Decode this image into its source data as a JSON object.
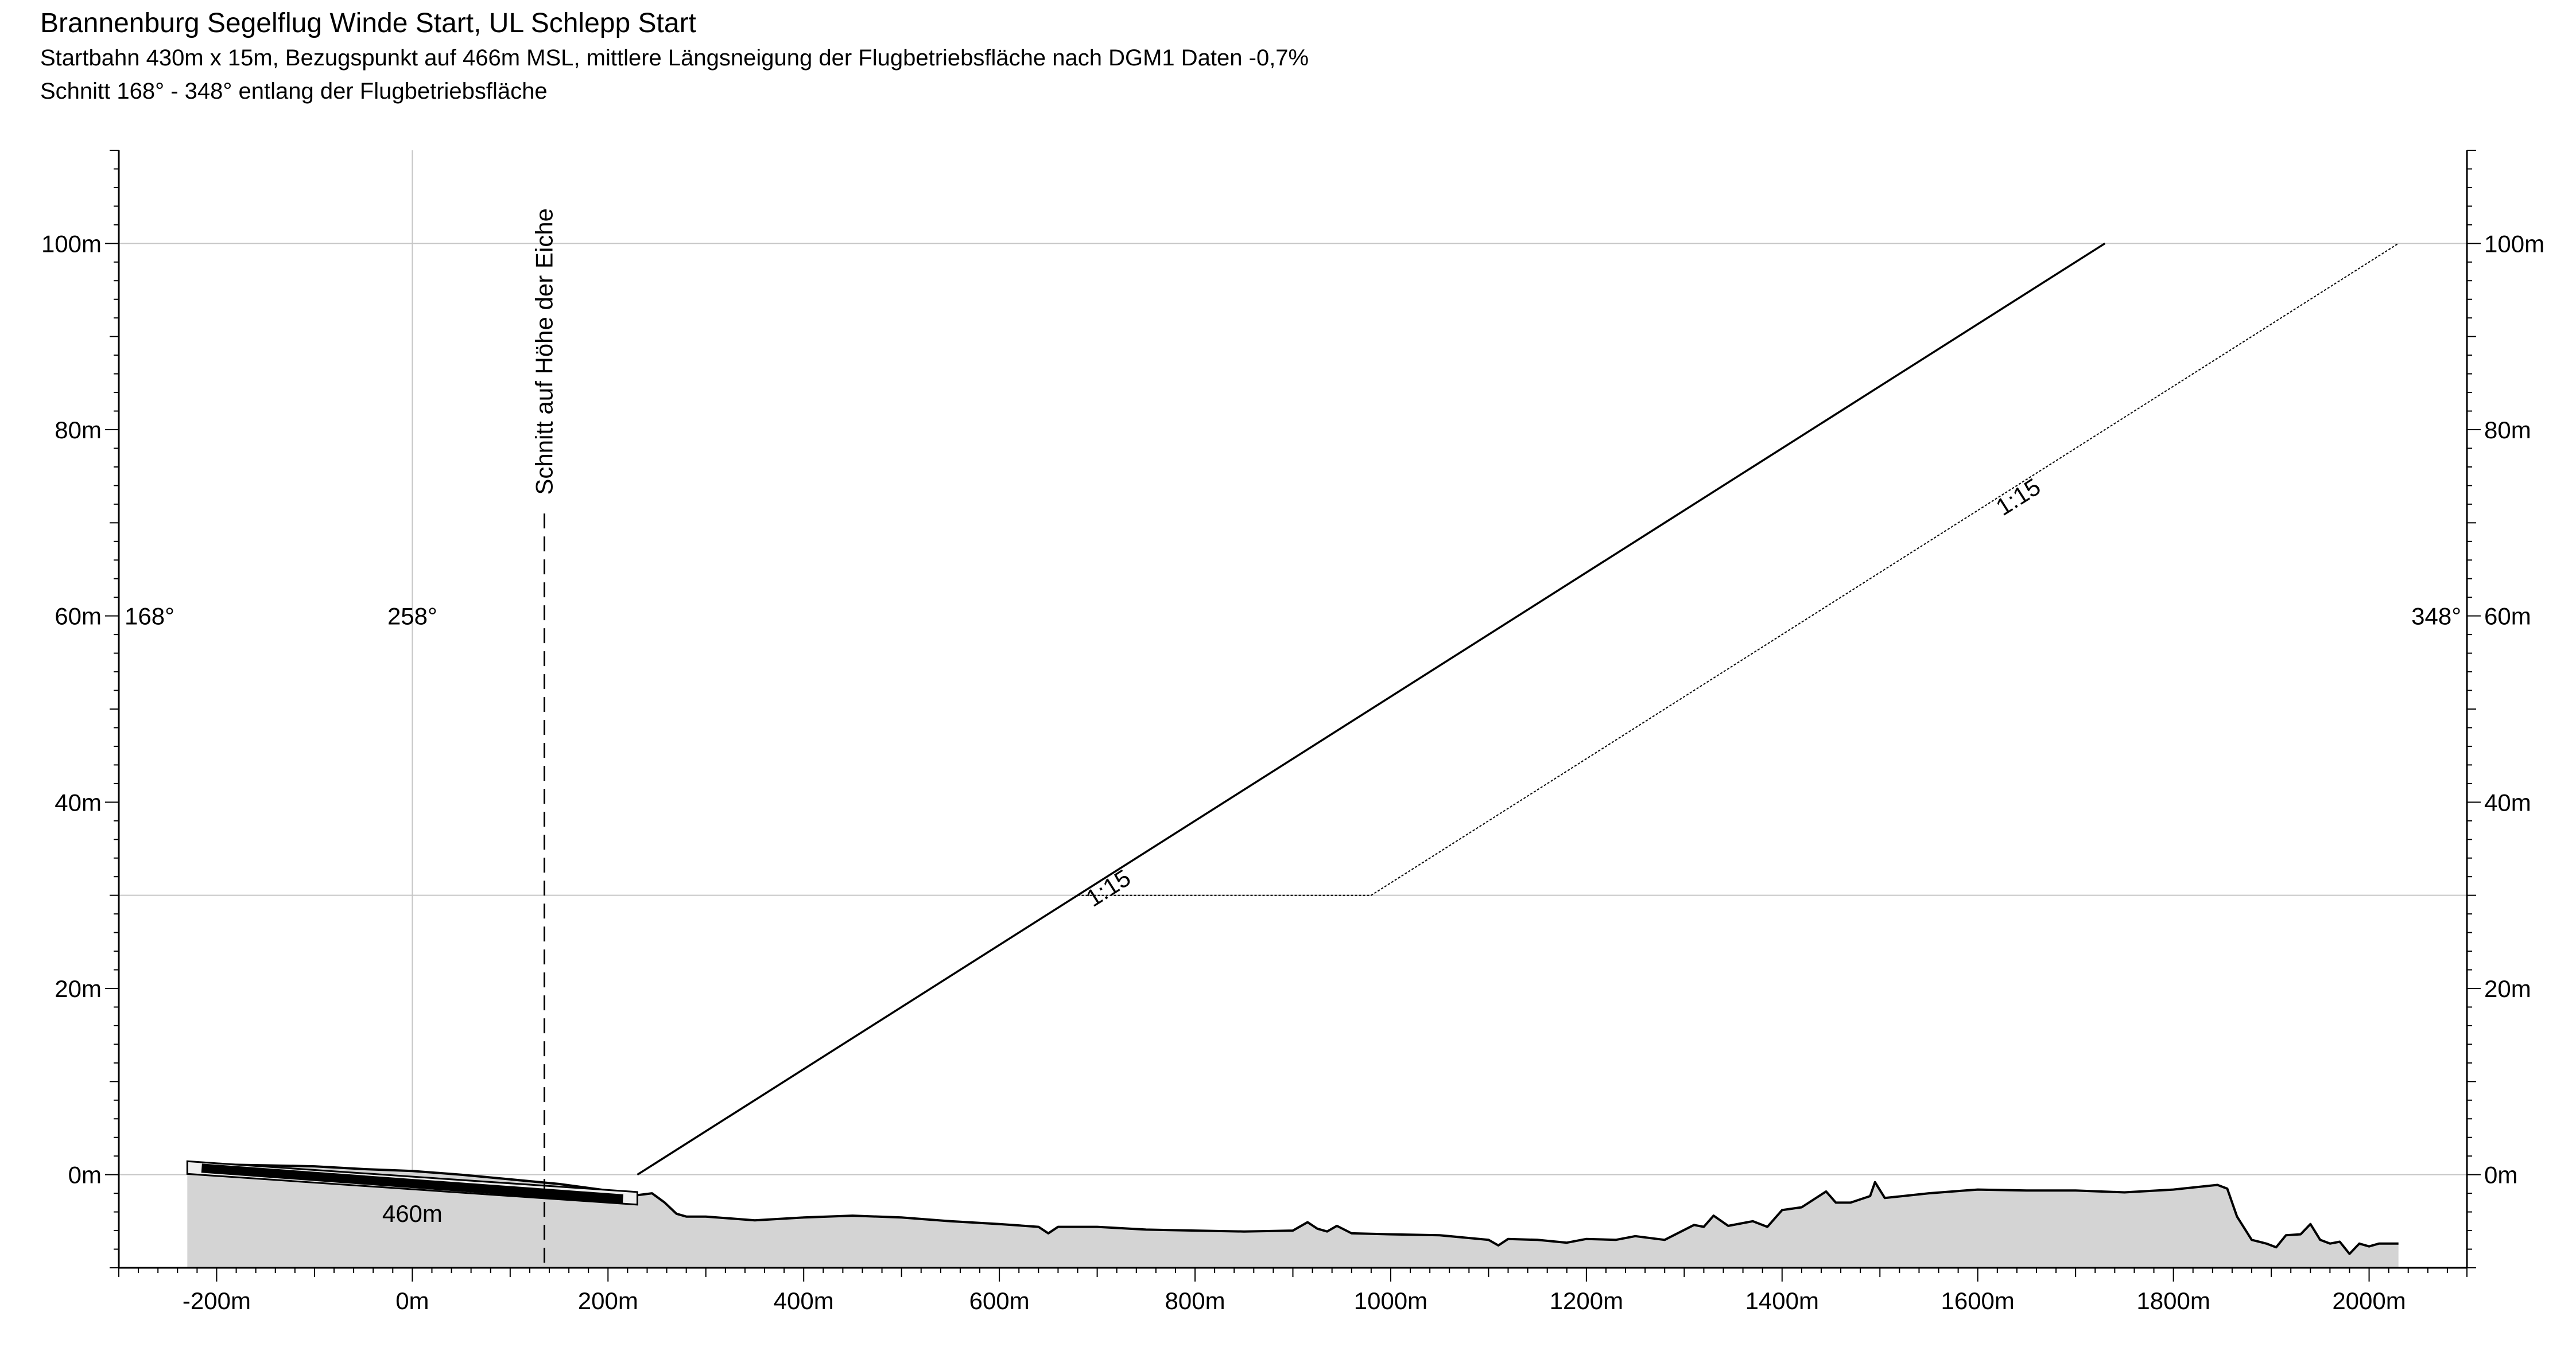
{
  "header": {
    "title": "Brannenburg Segelflug Winde Start, UL Schlepp Start",
    "subtitle_1": "Startbahn 430m x 15m, Bezugspunkt auf 466m MSL, mittlere Längsneigung der Flugbetriebsfläche nach DGM1 Daten -0,7%",
    "subtitle_2": "Schnitt 168° - 348° entlang der Flugbetriebsfläche"
  },
  "chart_data": {
    "type": "area",
    "title": "Brannenburg Segelflug Winde Start, UL Schlepp Start",
    "xlabel": "",
    "ylabel": "",
    "xlim": [
      -300,
      2100
    ],
    "ylim": [
      -10,
      110
    ],
    "grid": true,
    "x_ticks": [
      -200,
      0,
      200,
      400,
      600,
      800,
      1000,
      1200,
      1400,
      1600,
      1800,
      2000
    ],
    "x_tick_labels": [
      "-200m",
      "0m",
      "200m",
      "400m",
      "600m",
      "800m",
      "1000m",
      "1200m",
      "1400m",
      "1600m",
      "1800m",
      "2000m"
    ],
    "y_ticks": [
      0,
      20,
      40,
      60,
      80,
      100
    ],
    "y_tick_labels": [
      "0m",
      "20m",
      "40m",
      "60m",
      "80m",
      "100m"
    ],
    "direction_labels": {
      "left": "168°",
      "mid": "258°",
      "right": "348°"
    },
    "terrain": [
      [
        -230,
        1.2
      ],
      [
        -200,
        1.1
      ],
      [
        -150,
        1.0
      ],
      [
        -100,
        0.9
      ],
      [
        -50,
        0.6
      ],
      [
        0,
        0.4
      ],
      [
        50,
        0.0
      ],
      [
        100,
        -0.5
      ],
      [
        150,
        -1.0
      ],
      [
        200,
        -1.7
      ],
      [
        230,
        -2.2
      ],
      [
        245,
        -2.0
      ],
      [
        258,
        -3.0
      ],
      [
        270,
        -4.2
      ],
      [
        280,
        -4.5
      ],
      [
        300,
        -4.5
      ],
      [
        350,
        -4.9
      ],
      [
        400,
        -4.6
      ],
      [
        450,
        -4.4
      ],
      [
        500,
        -4.6
      ],
      [
        550,
        -5.0
      ],
      [
        600,
        -5.3
      ],
      [
        640,
        -5.6
      ],
      [
        650,
        -6.3
      ],
      [
        660,
        -5.6
      ],
      [
        700,
        -5.6
      ],
      [
        750,
        -5.9
      ],
      [
        800,
        -6.0
      ],
      [
        850,
        -6.1
      ],
      [
        900,
        -6.0
      ],
      [
        915,
        -5.1
      ],
      [
        925,
        -5.8
      ],
      [
        935,
        -6.1
      ],
      [
        945,
        -5.5
      ],
      [
        960,
        -6.3
      ],
      [
        1000,
        -6.4
      ],
      [
        1050,
        -6.5
      ],
      [
        1100,
        -7.0
      ],
      [
        1110,
        -7.6
      ],
      [
        1120,
        -6.9
      ],
      [
        1150,
        -7.0
      ],
      [
        1180,
        -7.3
      ],
      [
        1200,
        -6.9
      ],
      [
        1230,
        -7.0
      ],
      [
        1250,
        -6.6
      ],
      [
        1280,
        -7.0
      ],
      [
        1310,
        -5.4
      ],
      [
        1320,
        -5.6
      ],
      [
        1330,
        -4.4
      ],
      [
        1345,
        -5.5
      ],
      [
        1370,
        -5.0
      ],
      [
        1385,
        -5.6
      ],
      [
        1400,
        -3.8
      ],
      [
        1420,
        -3.5
      ],
      [
        1445,
        -1.8
      ],
      [
        1455,
        -3.0
      ],
      [
        1470,
        -3.0
      ],
      [
        1490,
        -2.3
      ],
      [
        1495,
        -0.8
      ],
      [
        1505,
        -2.5
      ],
      [
        1550,
        -2.0
      ],
      [
        1600,
        -1.6
      ],
      [
        1650,
        -1.7
      ],
      [
        1700,
        -1.7
      ],
      [
        1750,
        -1.9
      ],
      [
        1800,
        -1.6
      ],
      [
        1845,
        -1.1
      ],
      [
        1855,
        -1.5
      ],
      [
        1865,
        -4.5
      ],
      [
        1880,
        -7.0
      ],
      [
        1895,
        -7.4
      ],
      [
        1905,
        -7.8
      ],
      [
        1915,
        -6.5
      ],
      [
        1930,
        -6.4
      ],
      [
        1940,
        -5.3
      ],
      [
        1950,
        -7.0
      ],
      [
        1960,
        -7.4
      ],
      [
        1970,
        -7.2
      ],
      [
        1980,
        -8.5
      ],
      [
        1990,
        -7.4
      ],
      [
        2000,
        -7.7
      ],
      [
        2010,
        -7.4
      ],
      [
        2030,
        -7.4
      ]
    ],
    "runway": {
      "x_start": -230,
      "x_end": 230,
      "y_start": 0.7,
      "y_end": -2.6,
      "label": "460m"
    },
    "section_line": {
      "x": 135,
      "label": "Schnitt auf Höhe der Eiche"
    },
    "slopes": [
      {
        "name": "1:15",
        "style": "solid",
        "points": [
          [
            230,
            0
          ],
          [
            230,
            0
          ],
          [
            1730,
            100
          ]
        ]
      },
      {
        "name": "1:15",
        "style": "dotted",
        "points": [
          [
            680,
            30
          ],
          [
            980,
            30
          ],
          [
            1430,
            60
          ],
          [
            2030,
            100
          ]
        ]
      }
    ],
    "reference_lines": {
      "horizontal_y": [
        0,
        30,
        100
      ],
      "vertical_x": [
        0
      ]
    },
    "colors": {
      "terrain_fill": "#d4d4d4",
      "grid": "#c6c6c6",
      "line": "#000000"
    }
  }
}
